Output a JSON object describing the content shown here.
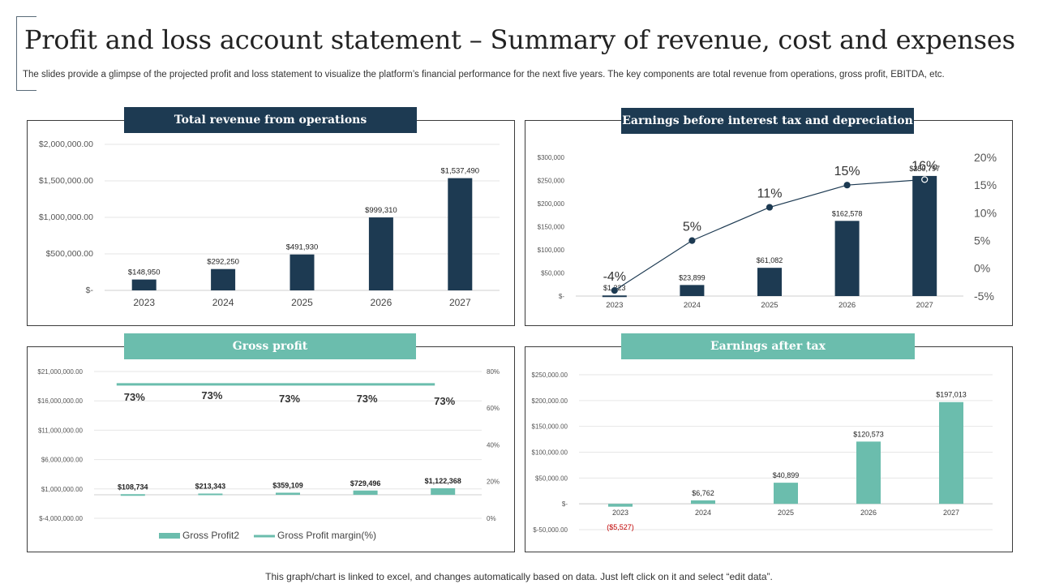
{
  "header": {
    "title": "Profit and loss account statement – Summary of revenue, cost and expenses",
    "subtitle": "The slides provide a glimpse of the projected profit and loss statement to visualize the platform’s financial performance for the next five years. The key components are total revenue from operations, gross profit, EBITDA,  etc."
  },
  "footer": {
    "note": "This graph/chart is linked to excel,  and changes automatically based on data. Just left click on it and select “edit data”."
  },
  "colors": {
    "navy": "#1d3a52",
    "teal": "#6bbdad",
    "negative": "#c00000"
  },
  "chart_data": [
    {
      "type": "bar",
      "title": "Total revenue from operations",
      "categories": [
        "2023",
        "2024",
        "2025",
        "2026",
        "2027"
      ],
      "values": [
        148950,
        292250,
        491930,
        999310,
        1537490
      ],
      "data_labels": [
        "$148,950",
        "$292,250",
        "$491,930",
        "$999,310",
        "$1,537,490"
      ],
      "y_ticks": [
        0,
        500000,
        1000000,
        1500000,
        2000000
      ],
      "y_tick_labels": [
        "$-",
        "$500,000.00",
        "$1,000,000.00",
        "$1,500,000.00",
        "$2,000,000.00"
      ],
      "ylim": [
        0,
        2000000
      ],
      "grid": true,
      "color": "#1d3a52"
    },
    {
      "type": "bar+line",
      "title": "Earnings before  interest tax and depreciation",
      "categories": [
        "2023",
        "2024",
        "2025",
        "2026",
        "2027"
      ],
      "values": [
        1323,
        23899,
        61082,
        162578,
        259797
      ],
      "data_labels": [
        "$1,323",
        "$23,899",
        "$61,082",
        "$162,578",
        "$259,797"
      ],
      "y_ticks": [
        0,
        50000,
        100000,
        150000,
        200000,
        250000,
        300000
      ],
      "y_tick_labels": [
        "$-",
        "$50,000",
        "$100,000",
        "$150,000",
        "$200,000",
        "$250,000",
        "$300,000"
      ],
      "ylim": [
        0,
        300000
      ],
      "line_values": [
        -4,
        5,
        11,
        15,
        16
      ],
      "line_labels": [
        "-4%",
        "5%",
        "11%",
        "15%",
        "16%"
      ],
      "y2_ticks": [
        -5,
        0,
        5,
        10,
        15,
        20
      ],
      "y2_tick_labels": [
        "-5%",
        "0%",
        "5%",
        "10%",
        "15%",
        "20%"
      ],
      "y2lim": [
        -5,
        20
      ],
      "grid": false,
      "color": "#1d3a52"
    },
    {
      "type": "bar+line",
      "title": "Gross profit",
      "categories": [
        "2023",
        "2024",
        "2025",
        "2026",
        "2027"
      ],
      "series": [
        {
          "name": "Gross Profit2",
          "values": [
            108734,
            213343,
            359109,
            729496,
            1122368
          ]
        },
        {
          "name": "Gross Profit margin(%)",
          "values": [
            73,
            73,
            73,
            73,
            73
          ]
        }
      ],
      "data_labels": [
        "$108,734",
        "$213,343",
        "$359,109",
        "$729,496",
        "$1,122,368"
      ],
      "line_labels": [
        "73%",
        "73%",
        "73%",
        "73%",
        "73%"
      ],
      "y_ticks": [
        -4000000,
        1000000,
        6000000,
        11000000,
        16000000,
        21000000
      ],
      "y_tick_labels": [
        "$-4,000,000.00",
        "$1,000,000.00",
        "$6,000,000.00",
        "$11,000,000.00",
        "$16,000,000.00",
        "$21,000,000.00"
      ],
      "ylim": [
        -4000000,
        21000000
      ],
      "y2_ticks": [
        0,
        20,
        40,
        60,
        80
      ],
      "y2_tick_labels": [
        "0%",
        "20%",
        "40%",
        "60%",
        "80%"
      ],
      "y2lim": [
        0,
        80
      ],
      "legend": "bottom",
      "grid": true,
      "color": "#6bbdad"
    },
    {
      "type": "bar",
      "title": "Earnings after tax",
      "categories": [
        "2023",
        "2024",
        "2025",
        "2026",
        "2027"
      ],
      "values": [
        -5527,
        6762,
        40899,
        120573,
        197013
      ],
      "data_labels": [
        "($5,527)",
        "$6,762",
        "$40,899",
        "$120,573",
        "$197,013"
      ],
      "y_ticks": [
        -50000,
        0,
        50000,
        100000,
        150000,
        200000,
        250000
      ],
      "y_tick_labels": [
        "$-50,000.00",
        "$-",
        "$50,000.00",
        "$100,000.00",
        "$150,000.00",
        "$200,000.00",
        "$250,000.00"
      ],
      "ylim": [
        -50000,
        250000
      ],
      "grid": true,
      "color": "#6bbdad"
    }
  ]
}
